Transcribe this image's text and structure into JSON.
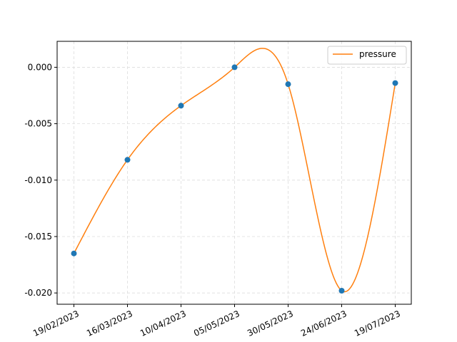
{
  "chart_data": {
    "type": "line",
    "title": "",
    "xlabel": "",
    "ylabel": "",
    "x": [
      "19/02/2023",
      "16/03/2023",
      "10/04/2023",
      "05/05/2023",
      "30/05/2023",
      "24/06/2023",
      "19/07/2023"
    ],
    "x_tick_labels": [
      "19/02/2023",
      "16/03/2023",
      "10/04/2023",
      "05/05/2023",
      "30/05/2023",
      "24/06/2023",
      "19/07/2023"
    ],
    "y_ticks": [
      "0.000",
      "-0.005",
      "-0.010",
      "-0.015",
      "-0.020"
    ],
    "ylim": [
      -0.021,
      0.0023
    ],
    "grid": true,
    "legend": "top-right",
    "series": [
      {
        "name": "pressure",
        "type": "smooth-line",
        "color": "#ff7f0e",
        "values": [
          -0.0165,
          -0.0082,
          -0.0034,
          0.0,
          -0.0015,
          -0.0198,
          -0.0014
        ]
      },
      {
        "type": "scatter",
        "color": "#1f77b4",
        "values": [
          -0.0165,
          -0.0082,
          -0.0034,
          0.0,
          -0.0015,
          -0.0198,
          -0.0014
        ]
      }
    ]
  }
}
